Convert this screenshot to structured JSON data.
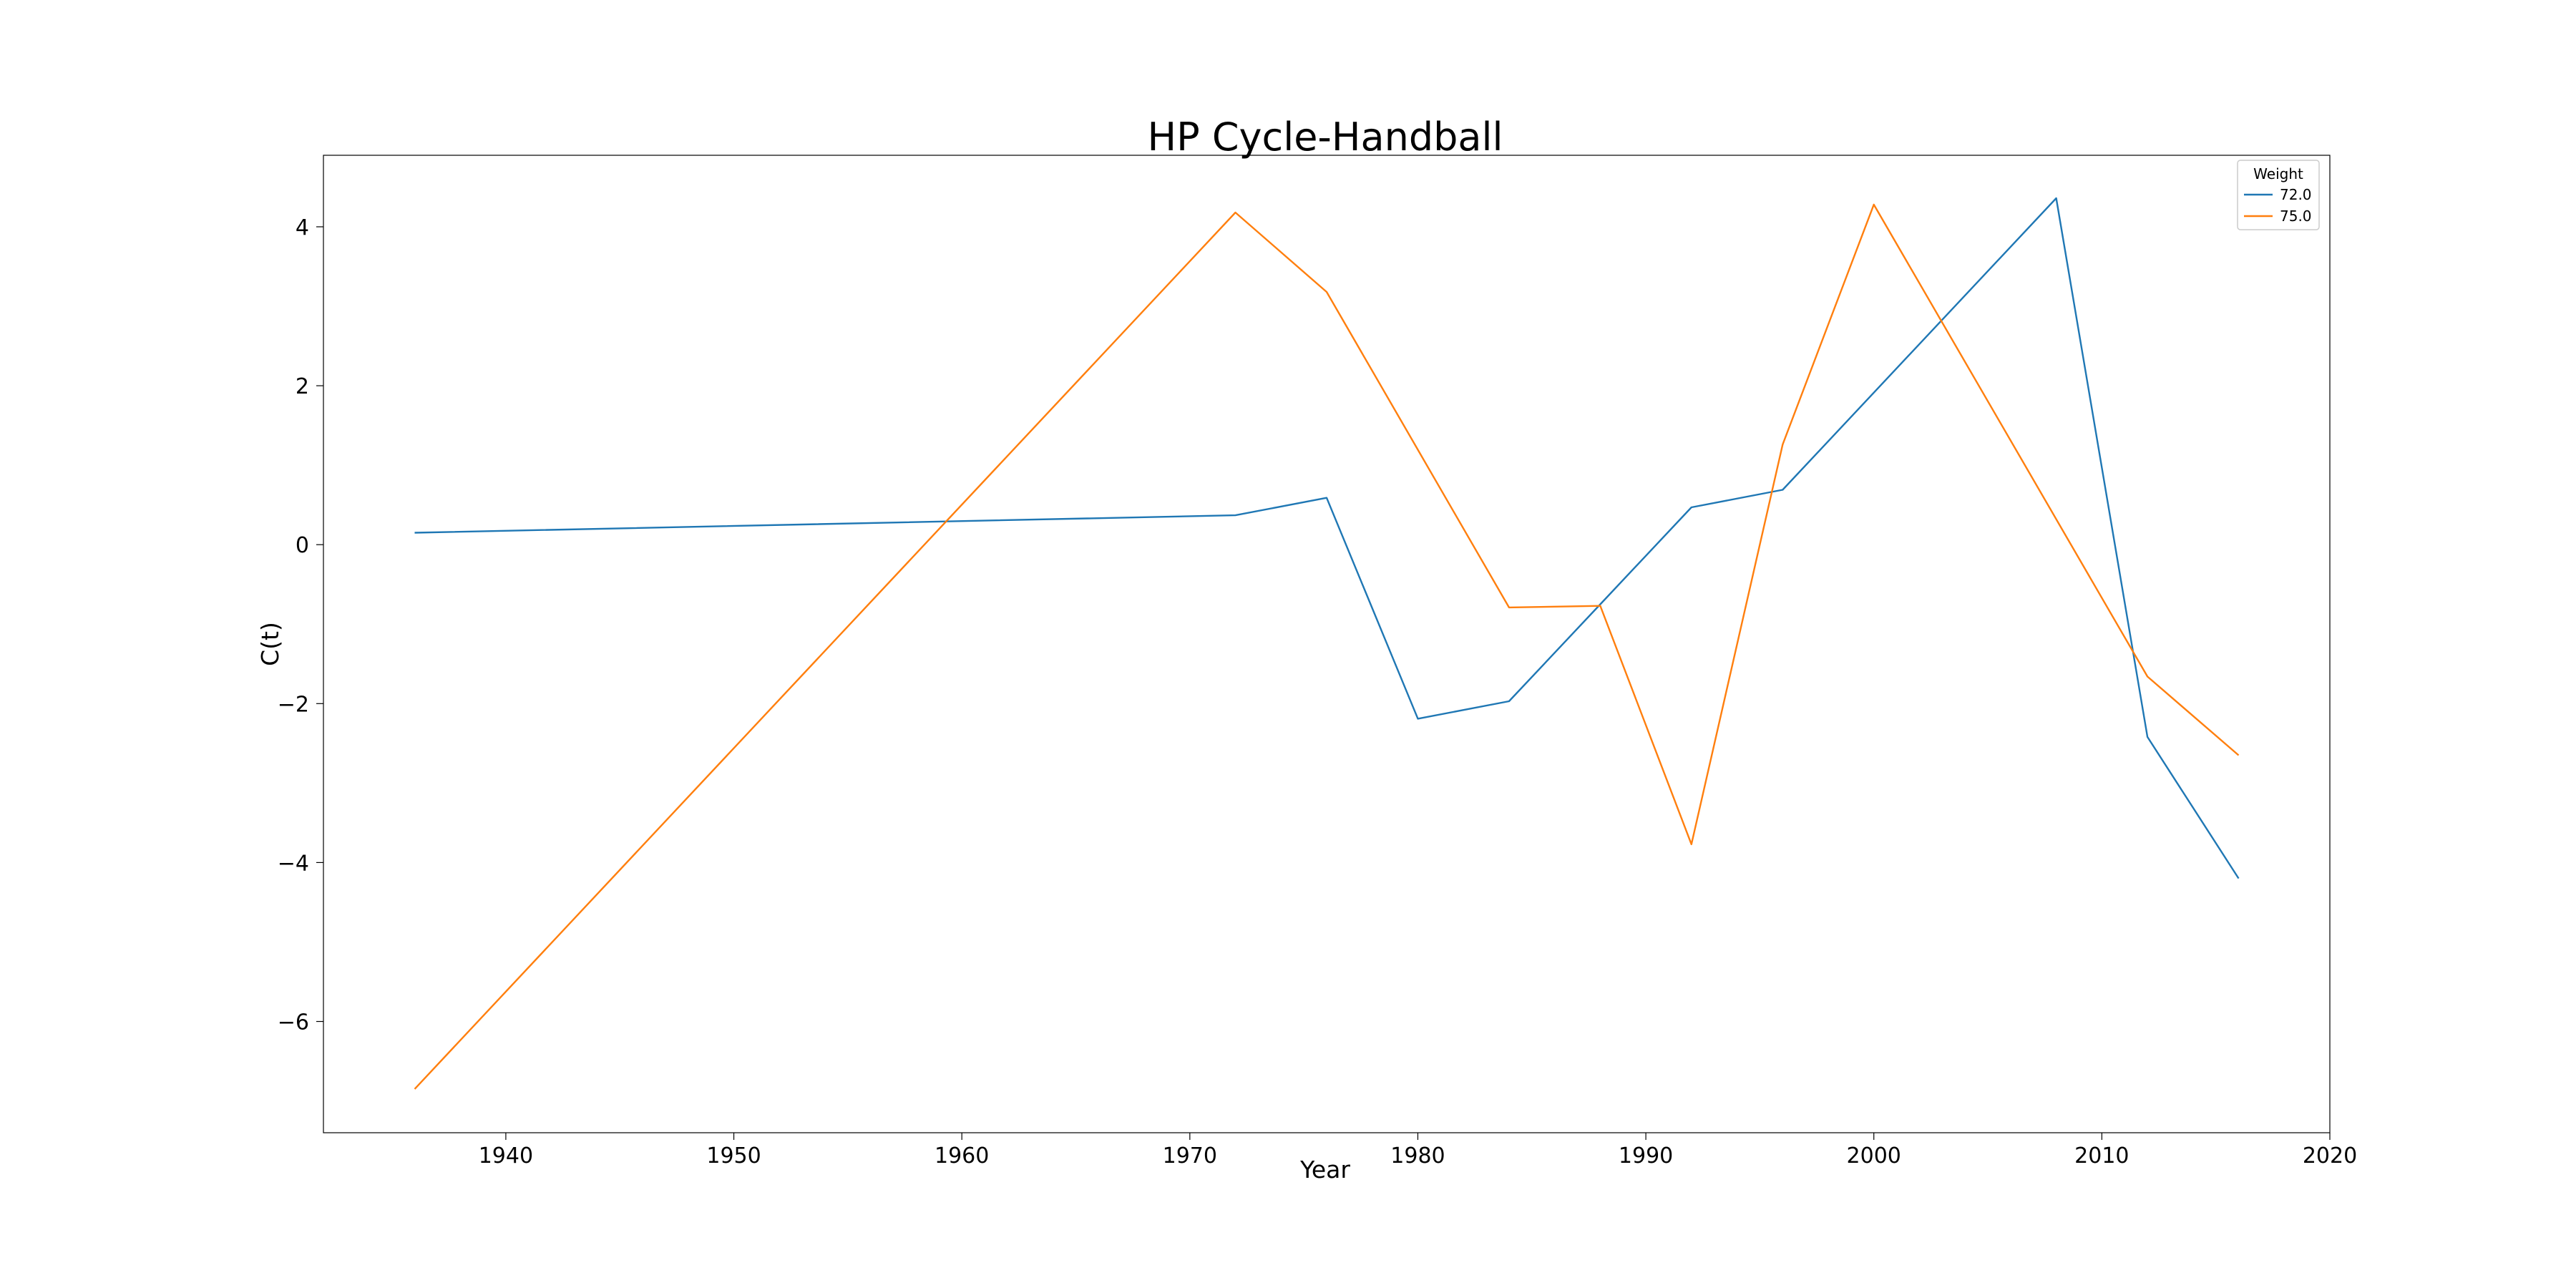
{
  "chart_data": {
    "type": "line",
    "title": "HP Cycle-Handball",
    "xlabel": "Year",
    "ylabel": "C(t)",
    "xlim": [
      1932,
      2020
    ],
    "ylim": [
      -7.4,
      4.9
    ],
    "xticks": [
      1940,
      1950,
      1960,
      1970,
      1980,
      1990,
      2000,
      2010,
      2020
    ],
    "yticks": [
      -6,
      -4,
      -2,
      0,
      2,
      4
    ],
    "xtick_labels": [
      "1940",
      "1950",
      "1960",
      "1970",
      "1980",
      "1990",
      "2000",
      "2010",
      "2020"
    ],
    "ytick_labels": [
      "−6",
      "−4",
      "−2",
      "0",
      "2",
      "4"
    ],
    "grid": false,
    "legend": {
      "title": "Weight",
      "placement": "top-right",
      "entries": [
        "72.0",
        "75.0"
      ]
    },
    "series": [
      {
        "name": "72.0",
        "color": "#1f77b4",
        "x": [
          1936,
          1972,
          1976,
          1980,
          1984,
          1988,
          1992,
          1996,
          2008,
          2012,
          2016
        ],
        "y": [
          0.15,
          0.37,
          0.59,
          -2.19,
          -1.97,
          -0.75,
          0.47,
          0.69,
          4.36,
          -2.42,
          -4.2
        ]
      },
      {
        "name": "75.0",
        "color": "#ff7f0e",
        "x": [
          1936,
          1972,
          1976,
          1984,
          1988,
          1992,
          1996,
          2000,
          2012,
          2016
        ],
        "y": [
          -6.85,
          4.18,
          3.18,
          -0.79,
          -0.77,
          -3.77,
          1.26,
          4.28,
          -1.66,
          -2.65
        ]
      }
    ]
  }
}
